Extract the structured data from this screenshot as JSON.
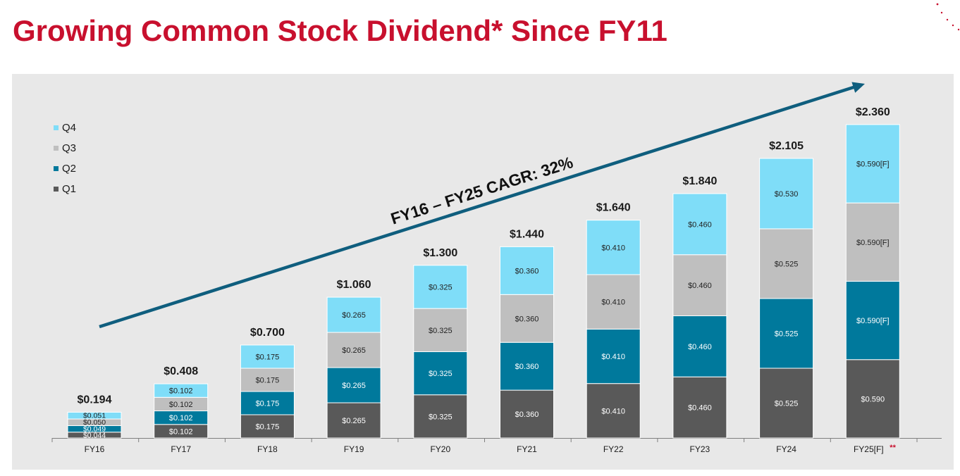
{
  "page": {
    "title": "Growing Common Stock Dividend* Since FY11"
  },
  "colors": {
    "q1": "#595959",
    "q2": "#00799C",
    "q3": "#BFBFBF",
    "q4": "#7FDDF8",
    "arrow": "#0F5E7E",
    "title": "#C8102E",
    "forecast_marker": "#C8102E"
  },
  "chart_data": {
    "type": "bar",
    "stacked": true,
    "title": "Growing Common Stock Dividend* Since FY11",
    "xlabel": "",
    "ylabel": "",
    "ylim": [
      0,
      2.5
    ],
    "grid": false,
    "legend_position": "top-left",
    "categories": [
      "FY16",
      "FY17",
      "FY18",
      "FY19",
      "FY20",
      "FY21",
      "FY22",
      "FY23",
      "FY24",
      "FY25[F]"
    ],
    "forecast_marker": "**",
    "totals": [
      "$0.194",
      "$0.408",
      "$0.700",
      "$1.060",
      "$1.300",
      "$1.440",
      "$1.640",
      "$1.840",
      "$2.105",
      "$2.360"
    ],
    "series": [
      {
        "name": "Q1",
        "values": [
          0.044,
          0.102,
          0.175,
          0.265,
          0.325,
          0.36,
          0.41,
          0.46,
          0.525,
          0.59
        ],
        "labels": [
          "$0.044",
          "$0.102",
          "$0.175",
          "$0.265",
          "$0.325",
          "$0.360",
          "$0.410",
          "$0.460",
          "$0.525",
          "$0.590"
        ]
      },
      {
        "name": "Q2",
        "values": [
          0.049,
          0.102,
          0.175,
          0.265,
          0.325,
          0.36,
          0.41,
          0.46,
          0.525,
          0.59
        ],
        "labels": [
          "$0.049",
          "$0.102",
          "$0.175",
          "$0.265",
          "$0.325",
          "$0.360",
          "$0.410",
          "$0.460",
          "$0.525",
          "$0.590[F]"
        ]
      },
      {
        "name": "Q3",
        "values": [
          0.05,
          0.102,
          0.175,
          0.265,
          0.325,
          0.36,
          0.41,
          0.46,
          0.525,
          0.59
        ],
        "labels": [
          "$0.050",
          "$0.102",
          "$0.175",
          "$0.265",
          "$0.325",
          "$0.360",
          "$0.410",
          "$0.460",
          "$0.525",
          "$0.590[F]"
        ]
      },
      {
        "name": "Q4",
        "values": [
          0.051,
          0.102,
          0.175,
          0.265,
          0.325,
          0.36,
          0.41,
          0.46,
          0.53,
          0.59
        ],
        "labels": [
          "$0.051",
          "$0.102",
          "$0.175",
          "$0.265",
          "$0.325",
          "$0.360",
          "$0.410",
          "$0.460",
          "$0.530",
          "$0.590[F]"
        ]
      }
    ],
    "legend": [
      "Q4",
      "Q3",
      "Q2",
      "Q1"
    ],
    "annotation": "FY16 – FY25 CAGR: 32%"
  }
}
